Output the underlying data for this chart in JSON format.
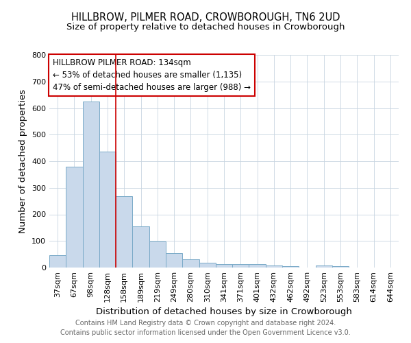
{
  "title": "HILLBROW, PILMER ROAD, CROWBOROUGH, TN6 2UD",
  "subtitle": "Size of property relative to detached houses in Crowborough",
  "xlabel": "Distribution of detached houses by size in Crowborough",
  "ylabel": "Number of detached properties",
  "categories": [
    "37sqm",
    "67sqm",
    "98sqm",
    "128sqm",
    "158sqm",
    "189sqm",
    "219sqm",
    "249sqm",
    "280sqm",
    "310sqm",
    "341sqm",
    "371sqm",
    "401sqm",
    "432sqm",
    "462sqm",
    "492sqm",
    "523sqm",
    "553sqm",
    "583sqm",
    "614sqm",
    "644sqm"
  ],
  "values": [
    47,
    380,
    625,
    437,
    268,
    155,
    97,
    53,
    30,
    18,
    13,
    12,
    13,
    8,
    5,
    0,
    7,
    5,
    0,
    0,
    0
  ],
  "bar_color": "#c9d9eb",
  "bar_edge_color": "#7aaac8",
  "red_line_x": 3.5,
  "annotation_line1": "HILLBROW PILMER ROAD: 134sqm",
  "annotation_line2": "← 53% of detached houses are smaller (1,135)",
  "annotation_line3": "47% of semi-detached houses are larger (988) →",
  "annotation_box_color": "#ffffff",
  "annotation_box_edge": "#cc0000",
  "footer_line1": "Contains HM Land Registry data © Crown copyright and database right 2024.",
  "footer_line2": "Contains public sector information licensed under the Open Government Licence v3.0.",
  "ylim": [
    0,
    800
  ],
  "yticks": [
    0,
    100,
    200,
    300,
    400,
    500,
    600,
    700,
    800
  ],
  "title_fontsize": 10.5,
  "subtitle_fontsize": 9.5,
  "axis_label_fontsize": 9.5,
  "tick_fontsize": 8,
  "annotation_fontsize": 8.5,
  "footer_fontsize": 7
}
